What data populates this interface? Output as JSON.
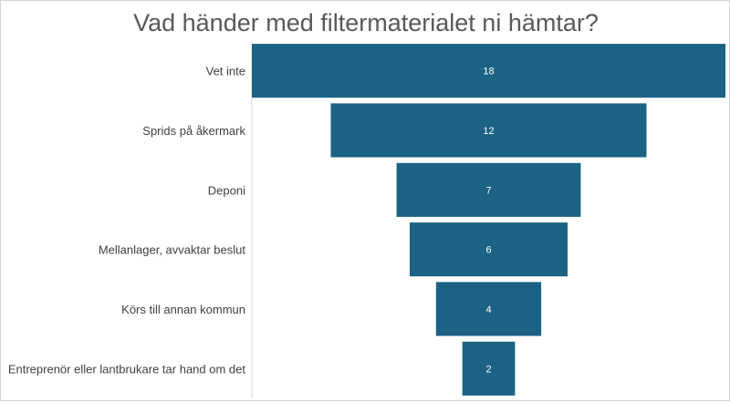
{
  "chart_data": {
    "type": "bar",
    "title": "Vad händer med filtermaterialet ni hämtar?",
    "categories": [
      "Vet inte",
      "Sprids på åkermark",
      "Deponi",
      "Mellanlager, avvaktar beslut",
      "Körs till annan kommun",
      "Entreprenör eller lantbrukare tar hand om det"
    ],
    "values": [
      18,
      12,
      7,
      6,
      4,
      2
    ],
    "bar_color": "#1b6284",
    "label_color": "#ffffff",
    "grid": false,
    "legend": "none"
  }
}
